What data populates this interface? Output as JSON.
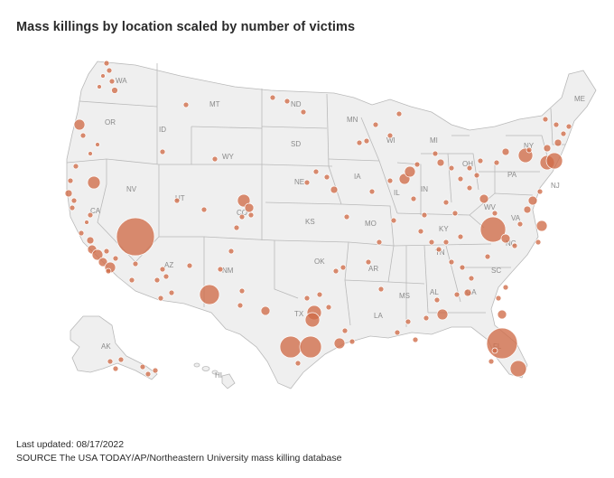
{
  "title": "Mass killings by location scaled by number of victims",
  "footer": {
    "updated": "Last updated: 08/17/2022",
    "source": "SOURCE The USA TODAY/AP/Northeastern University mass killing database"
  },
  "colors": {
    "dot": "#cf6b48",
    "land": "#efefef",
    "border": "#b9b9b9",
    "label": "#8a8a8a"
  },
  "state_labels": [
    "WA",
    "OR",
    "CA",
    "NV",
    "ID",
    "MT",
    "WY",
    "UT",
    "AZ",
    "NM",
    "CO",
    "ND",
    "SD",
    "NE",
    "KS",
    "OK",
    "TX",
    "MN",
    "IA",
    "MO",
    "AR",
    "LA",
    "WI",
    "MI",
    "IL",
    "IN",
    "OH",
    "KY",
    "TN",
    "MS",
    "AL",
    "GA",
    "FL",
    "SC",
    "NC",
    "VA",
    "WV",
    "PA",
    "NY",
    "NJ",
    "ME",
    "AK",
    "HI"
  ]
}
